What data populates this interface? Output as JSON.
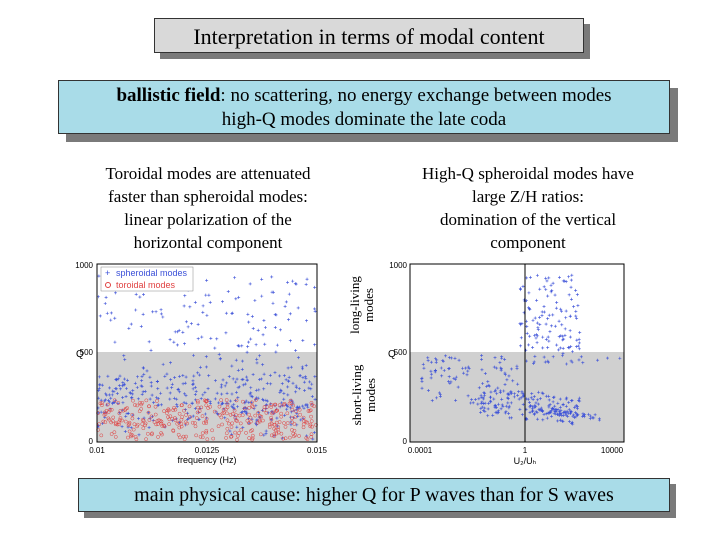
{
  "title": "Interpretation in terms of modal content",
  "ballistic": {
    "term": "ballistic field",
    "line1_rest": ": no scattering, no energy exchange between modes",
    "line2": "high-Q modes dominate the late coda"
  },
  "left_caption": [
    "Toroidal modes are attenuated",
    "faster than spheroidal modes:",
    "linear polarization of the",
    "horizontal component"
  ],
  "right_caption": [
    "High-Q spheroidal modes have",
    "large Z/H ratios:",
    "domination of the vertical",
    "component"
  ],
  "side_labels": {
    "long_living": [
      "long-living",
      "modes"
    ],
    "short_living": [
      "short-living",
      "modes"
    ]
  },
  "left_plot": {
    "legend": [
      "spheroidal modes",
      "toroidal modes"
    ],
    "xlabel": "frequency (Hz)",
    "ylabel": "Q",
    "xticks": [
      "0.01",
      "0.0125",
      "0.015"
    ],
    "yticks": [
      "0",
      "500",
      "1000"
    ]
  },
  "right_plot": {
    "xlabel": "U₂/Uₕ",
    "ylabel": "Q",
    "xticks": [
      "0.0001",
      "1",
      "10000"
    ],
    "yticks": [
      "0",
      "500",
      "1000"
    ]
  },
  "cause": "main physical cause: higher Q for P waves than for S waves",
  "colors": {
    "title_bg": "#d9d9d9",
    "panel_bg": "#a9dce8",
    "spheroidal": "#3a4fd8",
    "toroidal": "#e04040",
    "short_band": "#d0d0d0"
  }
}
